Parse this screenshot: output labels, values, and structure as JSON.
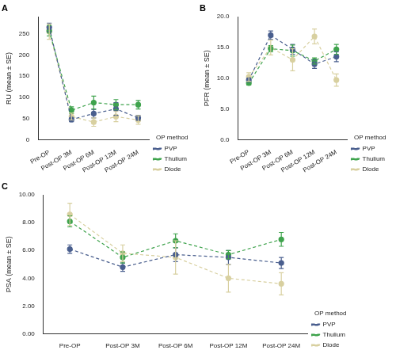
{
  "chart_data": [
    {
      "type": "line",
      "title": "A",
      "y_label": "RU (mean ± SE)",
      "legend_title": "OP method",
      "legend": "right",
      "grid": false,
      "categories": [
        "Pre-OP",
        "Post-OP 3M",
        "Post-OP 6M",
        "Post-OP 12M",
        "Post-OP 24M"
      ],
      "ylim": [
        0,
        290
      ],
      "yticks": [
        0,
        50,
        100,
        150,
        200,
        250
      ],
      "series": [
        {
          "name": "PVP",
          "color": "#4a5f8e",
          "line_style": "dashed",
          "marker": "circle",
          "values": [
            265,
            48,
            62,
            73,
            52
          ],
          "errors": [
            10,
            5,
            10,
            15,
            6
          ]
        },
        {
          "name": "Thulium",
          "color": "#3fa34d",
          "line_style": "dashed",
          "marker": "circle",
          "values": [
            257,
            70,
            88,
            83,
            83
          ],
          "errors": [
            12,
            8,
            15,
            12,
            10
          ]
        },
        {
          "name": "Diode",
          "color": "#d8d0a0",
          "line_style": "dashed",
          "marker": "circle",
          "values": [
            255,
            55,
            42,
            55,
            47
          ],
          "errors": [
            18,
            8,
            10,
            12,
            10
          ]
        }
      ]
    },
    {
      "type": "line",
      "title": "B",
      "y_label": "PFR (mean ± SE)",
      "legend_title": "OP method",
      "legend": "right",
      "grid": false,
      "categories": [
        "Pre-OP",
        "Post-OP 3M",
        "Post-OP 6M",
        "Post-OP 12M",
        "Post-OP 24M"
      ],
      "ylim": [
        0,
        20
      ],
      "yticks": [
        {
          "value": 0,
          "label": "0.0"
        },
        {
          "value": 5,
          "label": "5.0"
        },
        {
          "value": 10,
          "label": "10.0"
        },
        {
          "value": 15,
          "label": "15.0"
        },
        {
          "value": 20,
          "label": "20.0"
        }
      ],
      "series": [
        {
          "name": "PVP",
          "color": "#4a5f8e",
          "line_style": "dashed",
          "marker": "circle",
          "values": [
            9.7,
            17.0,
            14.7,
            12.3,
            13.5
          ],
          "errors": [
            0.3,
            0.7,
            0.8,
            0.7,
            0.8
          ]
        },
        {
          "name": "Thulium",
          "color": "#3fa34d",
          "line_style": "dashed",
          "marker": "circle",
          "values": [
            9.2,
            14.8,
            14.5,
            12.8,
            14.7
          ],
          "errors": [
            0.3,
            0.5,
            0.9,
            0.5,
            0.8
          ]
        },
        {
          "name": "Diode",
          "color": "#d8d0a0",
          "line_style": "dashed",
          "marker": "circle",
          "values": [
            10.2,
            15.0,
            13.0,
            16.8,
            9.7
          ],
          "errors": [
            0.7,
            1.2,
            1.8,
            1.2,
            1.0
          ]
        }
      ]
    },
    {
      "type": "line",
      "title": "C",
      "y_label": "PSA (mean ± SE)",
      "legend_title": "OP method",
      "legend": "right",
      "grid": false,
      "categories": [
        "Pre-OP",
        "Post-OP 3M",
        "Post-OP 6M",
        "Post-OP 12M",
        "Post-OP 24M"
      ],
      "ylim": [
        0,
        10
      ],
      "yticks": [
        {
          "value": 0,
          "label": "0.00"
        },
        {
          "value": 2,
          "label": "2.00"
        },
        {
          "value": 4,
          "label": "4.00"
        },
        {
          "value": 6,
          "label": "6.00"
        },
        {
          "value": 8,
          "label": "8.00"
        },
        {
          "value": 10,
          "label": "10.00"
        }
      ],
      "series": [
        {
          "name": "PVP",
          "color": "#4a5f8e",
          "line_style": "dashed",
          "marker": "circle",
          "values": [
            6.1,
            4.8,
            5.7,
            5.5,
            5.1
          ],
          "errors": [
            0.3,
            0.3,
            0.5,
            0.5,
            0.4
          ]
        },
        {
          "name": "Thulium",
          "color": "#3fa34d",
          "line_style": "dashed",
          "marker": "circle",
          "values": [
            8.1,
            5.5,
            6.7,
            5.7,
            6.8
          ],
          "errors": [
            0.4,
            0.4,
            0.5,
            0.3,
            0.5
          ]
        },
        {
          "name": "Diode",
          "color": "#d8d0a0",
          "line_style": "dashed",
          "marker": "circle",
          "values": [
            8.6,
            5.8,
            5.5,
            4.0,
            3.6
          ],
          "errors": [
            0.8,
            0.6,
            1.2,
            1.0,
            0.8
          ]
        }
      ]
    }
  ]
}
